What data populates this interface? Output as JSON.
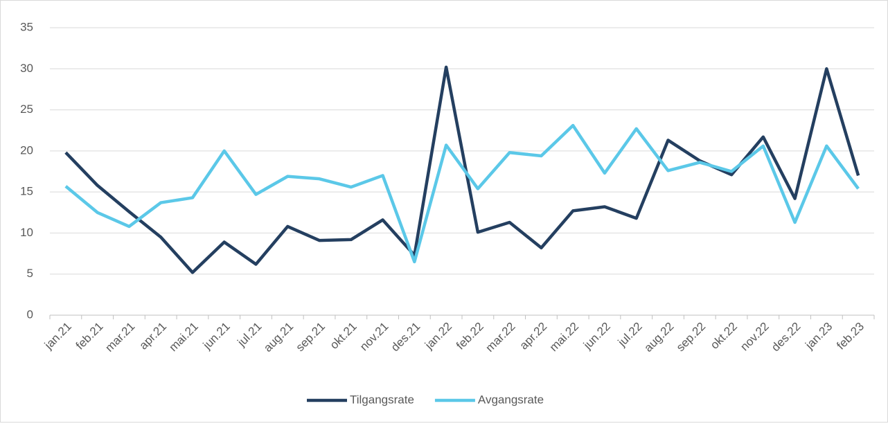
{
  "chart_data": {
    "type": "line",
    "categories": [
      "jan.21",
      "feb.21",
      "mar.21",
      "apr.21",
      "mai.21",
      "jun.21",
      "jul.21",
      "aug.21",
      "sep.21",
      "okt.21",
      "nov.21",
      "des.21",
      "jan.22",
      "feb.22",
      "mar.22",
      "apr.22",
      "mai.22",
      "jun.22",
      "jul.22",
      "aug.22",
      "sep.22",
      "okt.22",
      "nov.22",
      "des.22",
      "jan.23",
      "feb.23"
    ],
    "series": [
      {
        "name": "Tilgangsrate",
        "color": "#243f60",
        "values": [
          19.8,
          15.8,
          12.6,
          9.5,
          5.2,
          8.9,
          6.2,
          10.8,
          9.1,
          9.2,
          11.6,
          7.3,
          30.2,
          10.1,
          11.3,
          8.2,
          12.7,
          13.2,
          11.8,
          21.3,
          18.8,
          17.1,
          21.7,
          14.2,
          30.0,
          17.0
        ]
      },
      {
        "name": "Avgangsrate",
        "color": "#5bc8e8",
        "values": [
          15.7,
          12.5,
          10.8,
          13.7,
          14.3,
          20.0,
          14.7,
          16.9,
          16.6,
          15.6,
          17.0,
          6.5,
          20.7,
          15.4,
          19.8,
          19.4,
          23.1,
          17.3,
          22.7,
          17.6,
          18.6,
          17.5,
          20.6,
          11.3,
          20.6,
          15.4
        ]
      }
    ],
    "ylim": [
      0,
      35
    ],
    "yticks": [
      0,
      5,
      10,
      15,
      20,
      25,
      30,
      35
    ],
    "grid": true,
    "legend": "bottom"
  }
}
